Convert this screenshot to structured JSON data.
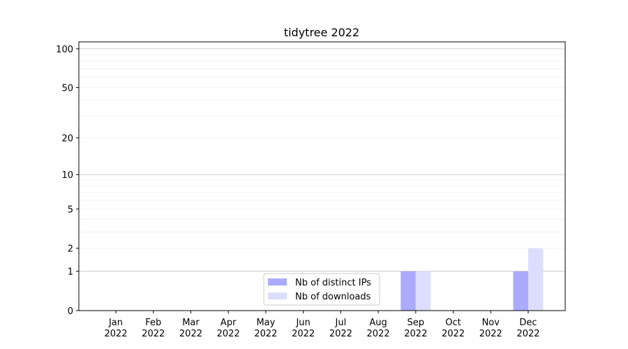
{
  "chart_data": {
    "type": "bar",
    "title": "tidytree 2022",
    "xlabel": "",
    "ylabel": "",
    "yscale": "log(1+y)",
    "ylim": [
      0,
      113
    ],
    "grid": true,
    "legend_placement": "lower-center",
    "categories": [
      "Jan\n2022",
      "Feb\n2022",
      "Mar\n2022",
      "Apr\n2022",
      "May\n2022",
      "Jun\n2022",
      "Jul\n2022",
      "Aug\n2022",
      "Sep\n2022",
      "Oct\n2022",
      "Nov\n2022",
      "Dec\n2022"
    ],
    "y_ticks": [
      0,
      1,
      2,
      5,
      10,
      20,
      50,
      100
    ],
    "series": [
      {
        "name": "Nb of distinct IPs",
        "color": "#aaaaff",
        "values": [
          0,
          0,
          0,
          0,
          0,
          0,
          0,
          0,
          1,
          0,
          0,
          1
        ]
      },
      {
        "name": "Nb of downloads",
        "color": "#ddddff",
        "values": [
          0,
          0,
          0,
          0,
          0,
          0,
          0,
          0,
          1,
          0,
          0,
          2
        ]
      }
    ]
  }
}
